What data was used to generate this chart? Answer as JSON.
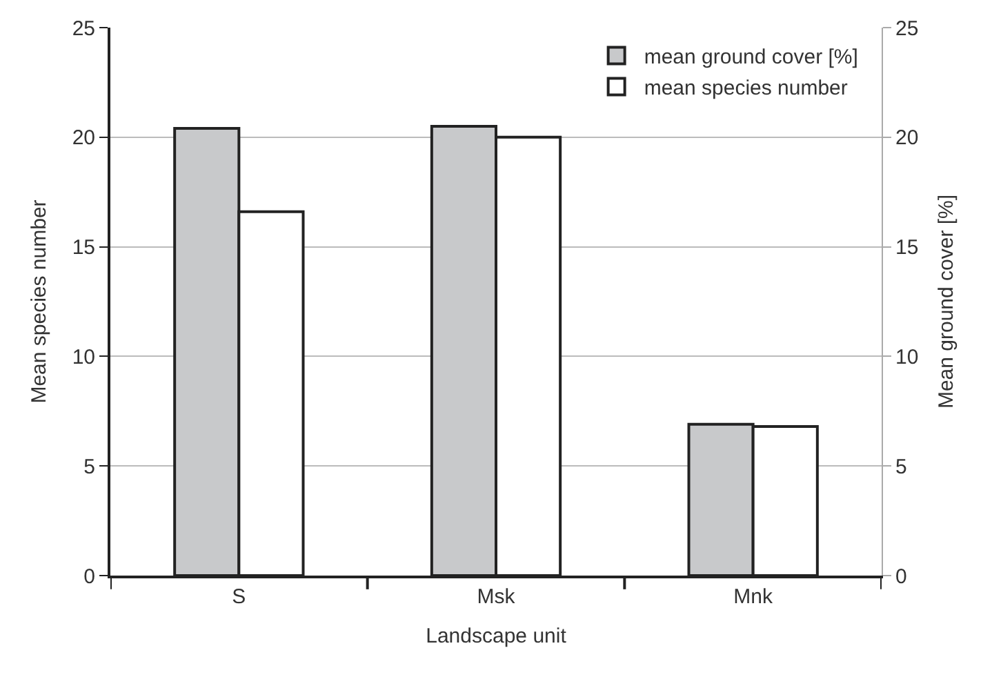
{
  "chart_data": {
    "type": "bar",
    "xlabel": "Landscape unit",
    "ylabel": "Mean species number",
    "y2label": "Mean ground cover [%]",
    "categories": [
      "S",
      "Msk",
      "Mnk"
    ],
    "series": [
      {
        "name": "mean ground cover [%]",
        "color": "#c8c9cb",
        "values": [
          20.4,
          20.5,
          6.9
        ]
      },
      {
        "name": "mean species number",
        "color": "#ffffff",
        "values": [
          16.6,
          20.0,
          6.8
        ]
      }
    ],
    "ylim": [
      0,
      25
    ],
    "yticks": [
      0,
      5,
      10,
      15,
      20,
      25
    ],
    "y2lim": [
      0,
      25
    ],
    "y2ticks": [
      0,
      5,
      10,
      15,
      20,
      25
    ],
    "grid": "y",
    "legend": "top right"
  }
}
